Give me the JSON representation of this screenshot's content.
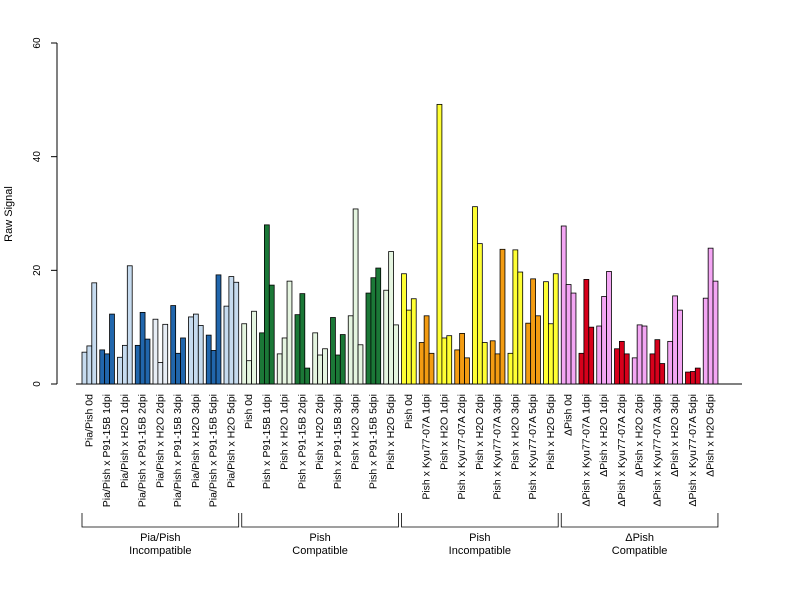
{
  "chart_data": {
    "type": "bar",
    "ylabel": "Raw Signal",
    "ylim": [
      0,
      60
    ],
    "yticks": [
      0,
      20,
      40,
      60
    ],
    "grid": false,
    "bars_per_category": 3,
    "categories": [
      "Pia/Pish 0d",
      "Pia/Pish x P91-15B 1dpi",
      "Pia/Pish x H2O 1dpi",
      "Pia/Pish x P91-15B 2dpi",
      "Pia/Pish x H2O 2dpi",
      "Pia/Pish x P91-15B 3dpi",
      "Pia/Pish x H2O 3dpi",
      "Pia/Pish x P91-15B 5dpi",
      "Pia/Pish x H2O 5dpi",
      "Pish 0d",
      "Pish x P91-15B 1dpi",
      "Pish x H2O 1dpi",
      "Pish x P91-15B 2dpi",
      "Pish x H2O 2dpi",
      "Pish x P91-15B 3dpi",
      "Pish x H2O 3dpi",
      "Pish x P91-15B 5dpi",
      "Pish x H2O 5dpi",
      "Pish 0d",
      "Pish x Kyu77-07A 1dpi",
      "Pish x H2O 1dpi",
      "Pish x Kyu77-07A 2dpi",
      "Pish x H2O 2dpi",
      "Pish x Kyu77-07A 3dpi",
      "Pish x H2O 3dpi",
      "Pish x Kyu77-07A 5dpi",
      "Pish x H2O 5dpi",
      "ΔPish 0d",
      "ΔPish x Kyu77-07A 1dpi",
      "ΔPish x H2O 1dpi",
      "ΔPish x Kyu77-07A 2dpi",
      "ΔPish x H2O 2dpi",
      "ΔPish x Kyu77-07A 3dpi",
      "ΔPish x H2O 3dpi",
      "ΔPish x Kyu77-07A 5dpi",
      "ΔPish x H2O 5dpi"
    ],
    "bar_colors": [
      "#c6dbef",
      "#2166ac",
      "#c6dbef",
      "#2166ac",
      "#e8eef6",
      "#2166ac",
      "#c6dbef",
      "#2166ac",
      "#c6dbef",
      "#e5f5e0",
      "#1b7837",
      "#e5f5e0",
      "#1b7837",
      "#e5f5e0",
      "#1b7837",
      "#e5f5e0",
      "#1b7837",
      "#e5f5e0",
      "#ffff33",
      "#f39c12",
      "#ffff33",
      "#f39c12",
      "#ffff33",
      "#f39c12",
      "#ffff33",
      "#f39c12",
      "#ffff33",
      "#f4a6f4",
      "#d7001b",
      "#f4a6f4",
      "#d7001b",
      "#f4a6f4",
      "#d7001b",
      "#f4a6f4",
      "#d7001b",
      "#f4a6f4"
    ],
    "values": [
      [
        5.6,
        6.7,
        17.8
      ],
      [
        6.0,
        5.3,
        12.3
      ],
      [
        4.7,
        6.8,
        20.8
      ],
      [
        6.8,
        12.6,
        7.9
      ],
      [
        11.4,
        3.8,
        10.5
      ],
      [
        13.8,
        5.4,
        8.1
      ],
      [
        11.8,
        12.3,
        10.3
      ],
      [
        8.6,
        5.9,
        19.2
      ],
      [
        13.7,
        18.9,
        17.9
      ],
      [
        10.6,
        4.1,
        12.8
      ],
      [
        9.0,
        28.0,
        17.4
      ],
      [
        5.3,
        8.1,
        18.1
      ],
      [
        12.2,
        15.9,
        2.8
      ],
      [
        9.0,
        5.1,
        6.2
      ],
      [
        11.7,
        5.1,
        8.7
      ],
      [
        12.0,
        30.8,
        6.9
      ],
      [
        16.0,
        18.7,
        20.4
      ],
      [
        16.5,
        23.3,
        10.4
      ],
      [
        19.4,
        13.0,
        15.0
      ],
      [
        7.3,
        12.0,
        5.4
      ],
      [
        49.2,
        8.1,
        8.5
      ],
      [
        6.0,
        8.9,
        4.6
      ],
      [
        31.2,
        24.7,
        7.3
      ],
      [
        7.6,
        5.3,
        23.7
      ],
      [
        5.4,
        23.6,
        19.7
      ],
      [
        10.7,
        18.5,
        12.0
      ],
      [
        18.0,
        10.6,
        19.4
      ],
      [
        27.8,
        17.5,
        16.0
      ],
      [
        5.4,
        18.4,
        10.0
      ],
      [
        10.2,
        15.4,
        19.8
      ],
      [
        6.2,
        7.5,
        5.3
      ],
      [
        4.6,
        10.4,
        10.2
      ],
      [
        5.3,
        7.8,
        3.6
      ],
      [
        7.5,
        15.5,
        13.0
      ],
      [
        2.1,
        2.2,
        2.8
      ],
      [
        15.1,
        23.9,
        18.1
      ]
    ],
    "groups": [
      {
        "line1": "Pia/Pish",
        "line2": "Incompatible",
        "start": 0,
        "end": 8
      },
      {
        "line1": "Pish",
        "line2": "Compatible",
        "start": 9,
        "end": 17
      },
      {
        "line1": "Pish",
        "line2": "Incompatible",
        "start": 18,
        "end": 26
      },
      {
        "line1": "ΔPish",
        "line2": "Compatible",
        "start": 27,
        "end": 35
      }
    ]
  }
}
